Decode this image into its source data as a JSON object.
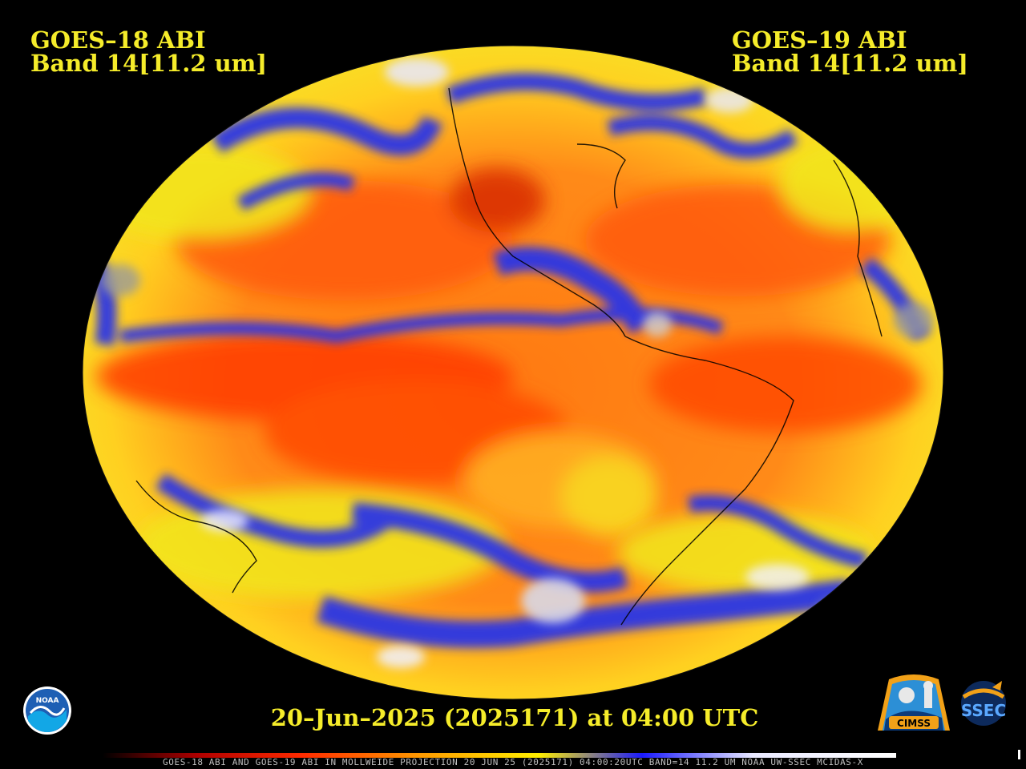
{
  "title_left": {
    "line1": "GOES–18 ABI",
    "line2": "Band 14[11.2 um]"
  },
  "title_right": {
    "line1": "GOES–19 ABI",
    "line2": "Band 14[11.2 um]"
  },
  "date_line": "20–Jun–2025 (2025171) at 04:00 UTC",
  "footer": "GOES-18 ABI AND GOES-19 ABI IN MOLLWEIDE PROJECTION 20 JUN 25 (2025171) 04:00:20UTC BAND=14 11.2 UM NOAA UW-SSEC MCIDAS-X",
  "logos": {
    "noaa": "NOAA",
    "cimss": "CIMSS",
    "ssec": "SSEC"
  },
  "colors": {
    "title_text": "#f5ec2a",
    "warm_core": "#ff3a00",
    "warm": "#ff6a10",
    "mid": "#ffa020",
    "cool": "#f4e414",
    "cloud_cold": "#2a35e6",
    "cloud_coldest": "#f0f0ff",
    "cloud_gray": "#9a9a9a"
  }
}
